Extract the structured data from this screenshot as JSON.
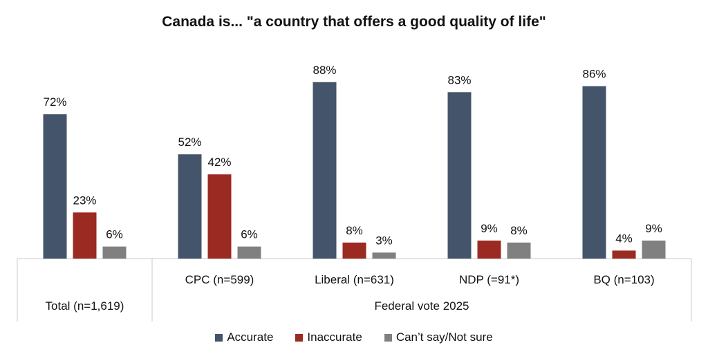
{
  "chart_data": {
    "type": "bar",
    "title": "Canada is... \"a country that offers a good quality of life\"",
    "categories": [
      "Total (n=1,619)",
      "CPC (n=599)",
      "Liberal (n=631)",
      "NDP (=91*)",
      "BQ (n=103)"
    ],
    "group_label": "Federal vote 2025",
    "series": [
      {
        "name": "Accurate",
        "color": "#44546a",
        "values": [
          72,
          52,
          88,
          83,
          86
        ]
      },
      {
        "name": "Inaccurate",
        "color": "#9b2a23",
        "values": [
          23,
          42,
          8,
          9,
          4
        ]
      },
      {
        "name": "Can’t say/Not sure",
        "color": "#808080",
        "values": [
          6,
          6,
          3,
          8,
          9
        ]
      }
    ],
    "value_suffix": "%",
    "ylim": [
      0,
      100
    ],
    "legend_position": "bottom"
  }
}
